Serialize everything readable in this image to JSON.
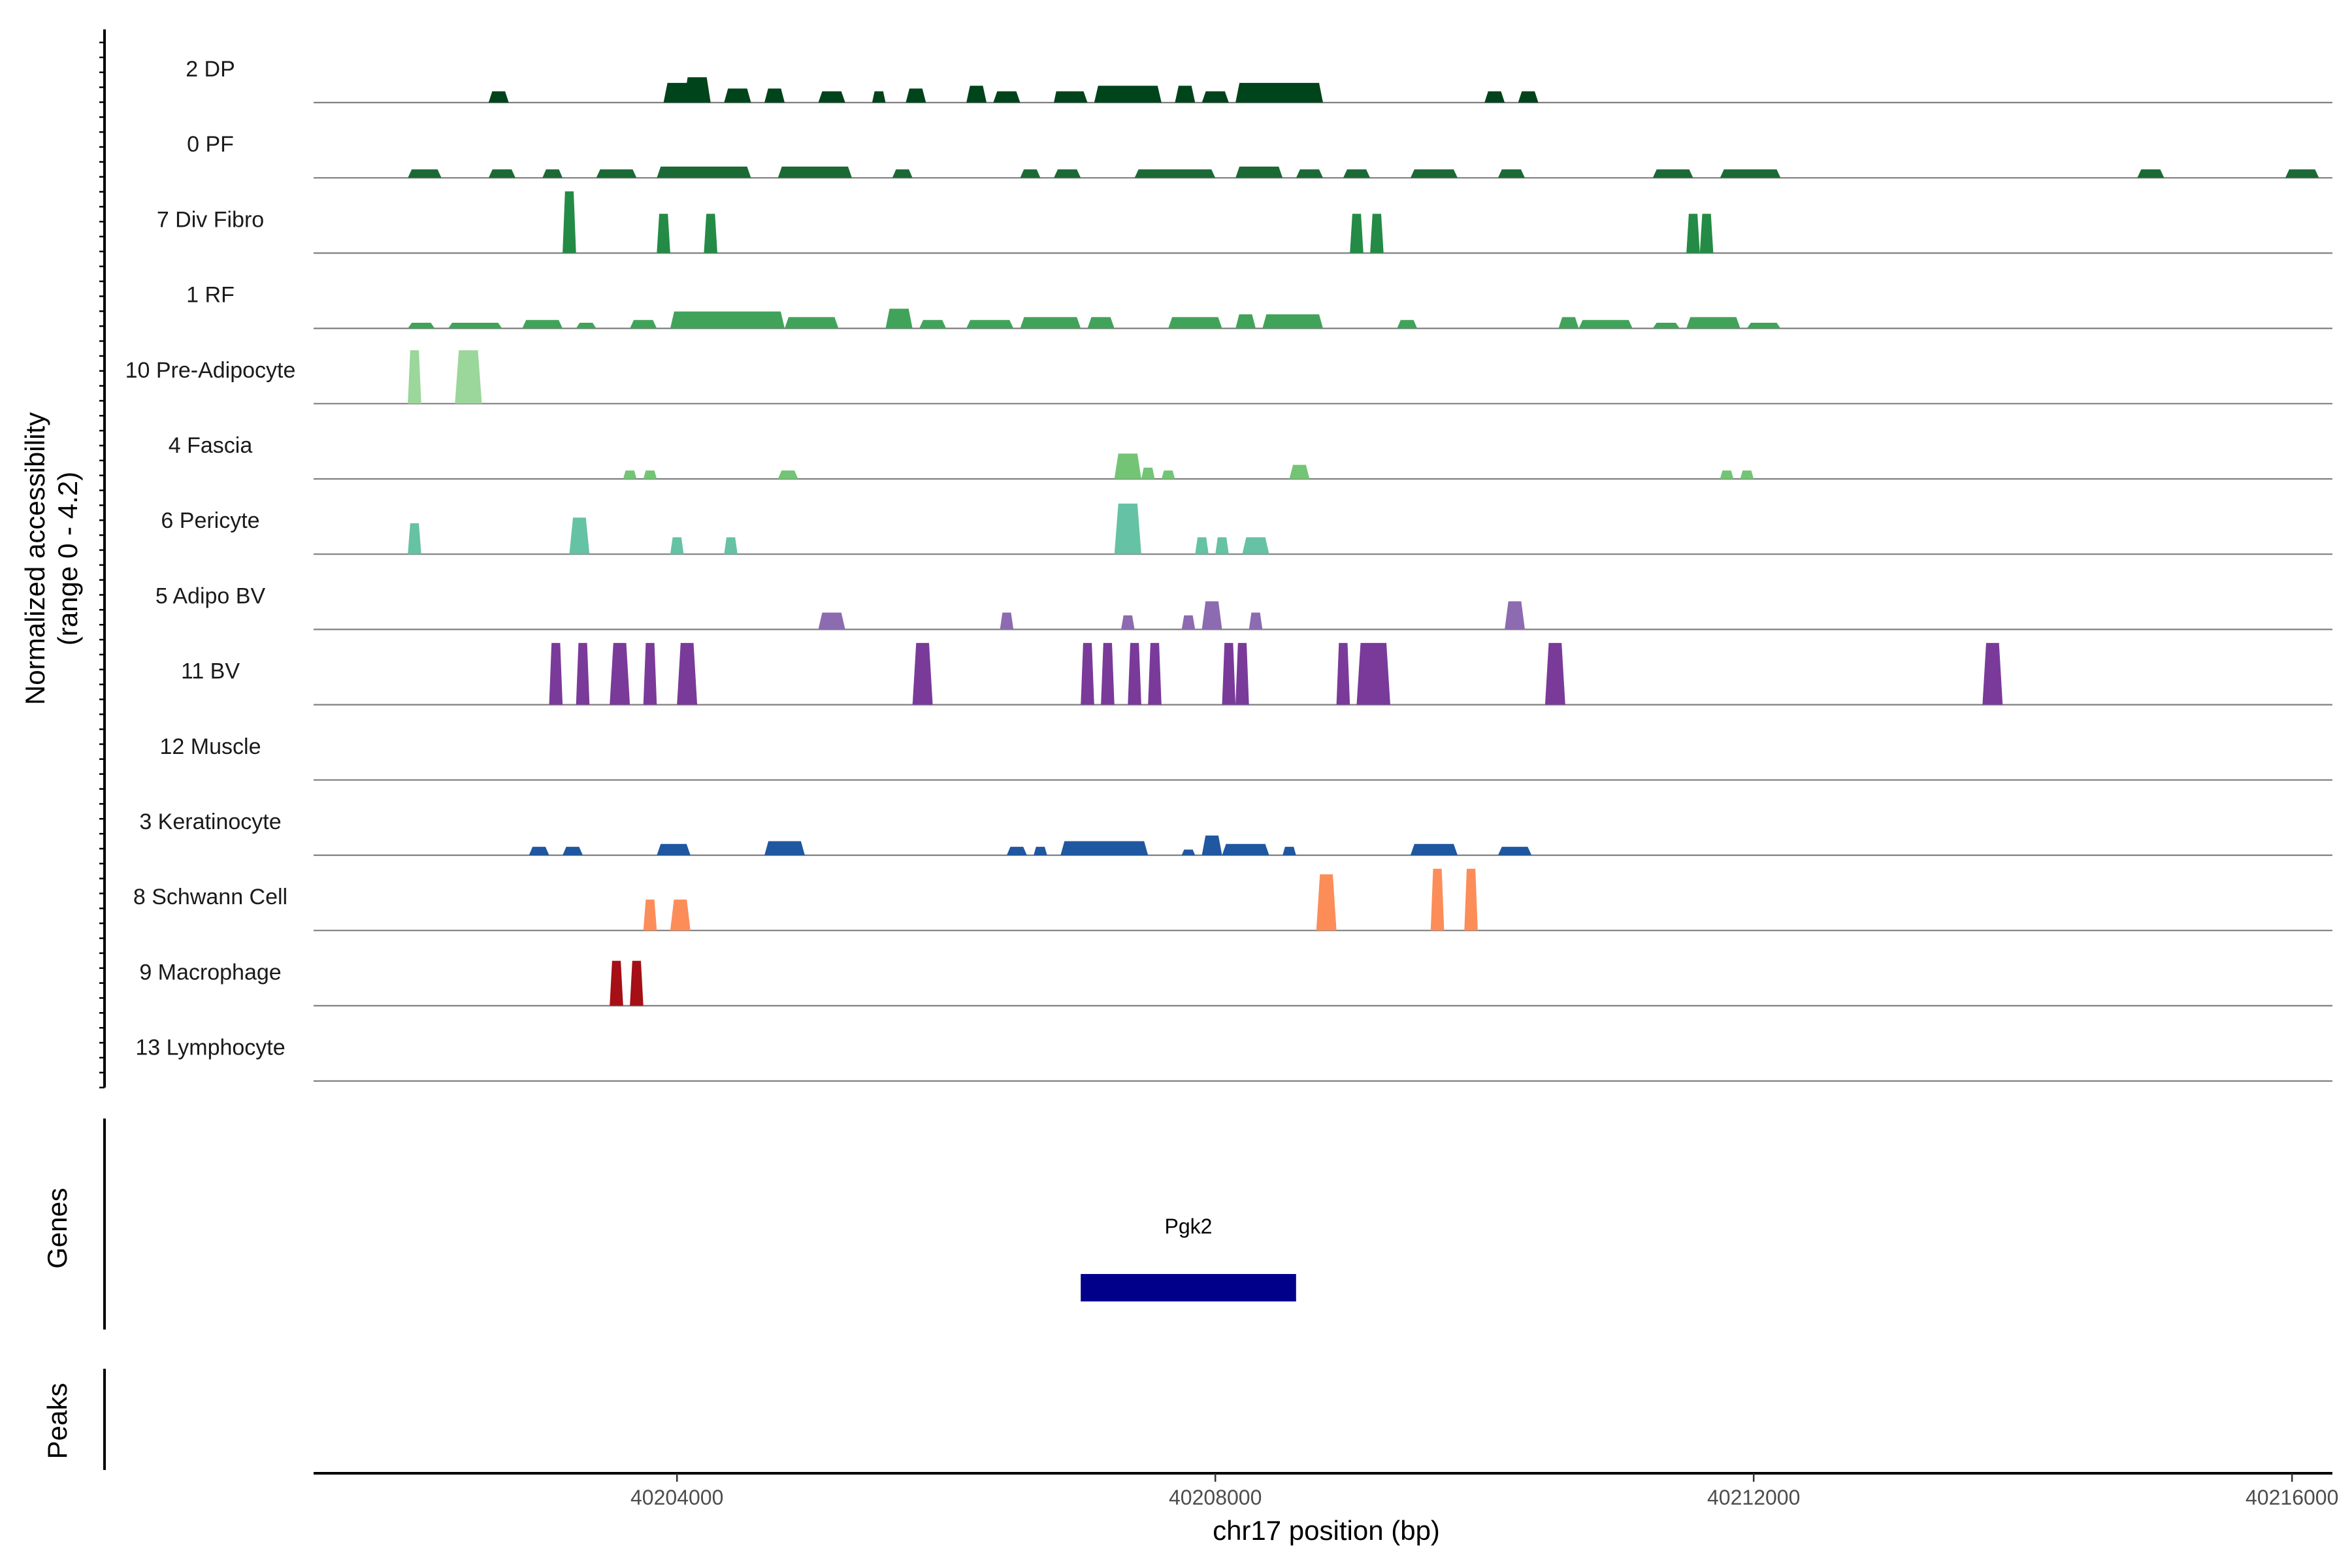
{
  "chart_data": {
    "type": "coverage",
    "title": "",
    "ylabel_line1": "Normalized accessibility",
    "ylabel_line2": "(range 0 - 4.2)",
    "yrange": [
      0,
      4.2
    ],
    "genes_label": "Genes",
    "peaks_label": "Peaks",
    "xlabel": "chr17 position (bp)",
    "xlim": [
      40201300,
      40216300
    ],
    "xticks": [
      40204000,
      40208000,
      40212000,
      40216000
    ],
    "xtick_labels": [
      "40204000",
      "40208000",
      "40212000",
      "40216000"
    ],
    "tracks": [
      {
        "name": "2 DP",
        "color": "#00441b",
        "peaks": [
          [
            40202600,
            40202750,
            0.4
          ],
          [
            40203900,
            40204250,
            0.7
          ],
          [
            40204050,
            40204250,
            0.9
          ],
          [
            40204350,
            40204550,
            0.5
          ],
          [
            40204650,
            40204800,
            0.5
          ],
          [
            40205050,
            40205250,
            0.4
          ],
          [
            40205450,
            40205550,
            0.4
          ],
          [
            40205700,
            40205850,
            0.5
          ],
          [
            40206150,
            40206300,
            0.6
          ],
          [
            40206350,
            40206550,
            0.4
          ],
          [
            40206800,
            40206900,
            0.4
          ],
          [
            40206850,
            40207050,
            0.4
          ],
          [
            40207100,
            40207600,
            0.6
          ],
          [
            40207700,
            40207850,
            0.6
          ],
          [
            40207900,
            40208100,
            0.4
          ],
          [
            40208150,
            40208800,
            0.7
          ],
          [
            40210000,
            40210150,
            0.4
          ],
          [
            40210250,
            40210400,
            0.4
          ]
        ]
      },
      {
        "name": "0 PF",
        "color": "#1b6a35",
        "peaks": [
          [
            40202000,
            40202250,
            0.3
          ],
          [
            40202600,
            40202800,
            0.3
          ],
          [
            40203000,
            40203150,
            0.3
          ],
          [
            40203400,
            40203700,
            0.3
          ],
          [
            40203850,
            40204550,
            0.4
          ],
          [
            40204750,
            40205300,
            0.4
          ],
          [
            40205600,
            40205750,
            0.3
          ],
          [
            40206550,
            40206700,
            0.3
          ],
          [
            40206800,
            40207000,
            0.3
          ],
          [
            40207400,
            40208000,
            0.3
          ],
          [
            40208150,
            40208500,
            0.4
          ],
          [
            40208600,
            40208800,
            0.3
          ],
          [
            40208950,
            40209150,
            0.3
          ],
          [
            40209450,
            40209800,
            0.3
          ],
          [
            40210100,
            40210300,
            0.3
          ],
          [
            40211250,
            40211550,
            0.3
          ],
          [
            40211750,
            40212200,
            0.3
          ],
          [
            40214850,
            40215050,
            0.3
          ],
          [
            40215950,
            40216200,
            0.3
          ]
        ]
      },
      {
        "name": "7 Div Fibro",
        "color": "#238b45",
        "peaks": [
          [
            40203150,
            40203250,
            2.2
          ],
          [
            40203850,
            40203950,
            1.4
          ],
          [
            40204200,
            40204300,
            1.4
          ],
          [
            40209000,
            40209100,
            1.4
          ],
          [
            40209150,
            40209250,
            1.4
          ],
          [
            40211500,
            40211600,
            1.4
          ],
          [
            40211600,
            40211700,
            1.4
          ]
        ]
      },
      {
        "name": "1 RF",
        "color": "#41a35a",
        "peaks": [
          [
            40202000,
            40202200,
            0.2
          ],
          [
            40202300,
            40202700,
            0.2
          ],
          [
            40202850,
            40203150,
            0.3
          ],
          [
            40203250,
            40203400,
            0.2
          ],
          [
            40203650,
            40203850,
            0.3
          ],
          [
            40203950,
            40204800,
            0.6
          ],
          [
            40204800,
            40205200,
            0.4
          ],
          [
            40205550,
            40205750,
            0.7
          ],
          [
            40205800,
            40206000,
            0.3
          ],
          [
            40206150,
            40206500,
            0.3
          ],
          [
            40206550,
            40207000,
            0.4
          ],
          [
            40207050,
            40207250,
            0.4
          ],
          [
            40207650,
            40208050,
            0.4
          ],
          [
            40208150,
            40208300,
            0.5
          ],
          [
            40208350,
            40208800,
            0.5
          ],
          [
            40209350,
            40209500,
            0.3
          ],
          [
            40210550,
            40210700,
            0.4
          ],
          [
            40210700,
            40211100,
            0.3
          ],
          [
            40211250,
            40211450,
            0.2
          ],
          [
            40211500,
            40211900,
            0.4
          ],
          [
            40211950,
            40212200,
            0.2
          ]
        ]
      },
      {
        "name": "10 Pre-Adipocyte",
        "color": "#9bd69a",
        "peaks": [
          [
            40202000,
            40202100,
            1.9
          ],
          [
            40202350,
            40202550,
            1.9
          ]
        ]
      },
      {
        "name": "4 Fascia",
        "color": "#74c476",
        "peaks": [
          [
            40203600,
            40203700,
            0.3
          ],
          [
            40203750,
            40203850,
            0.3
          ],
          [
            40204750,
            40204900,
            0.3
          ],
          [
            40207250,
            40207450,
            0.9
          ],
          [
            40207450,
            40207550,
            0.4
          ],
          [
            40207600,
            40207700,
            0.3
          ],
          [
            40208550,
            40208700,
            0.5
          ],
          [
            40211750,
            40211850,
            0.3
          ],
          [
            40211900,
            40212000,
            0.3
          ]
        ]
      },
      {
        "name": "6 Pericyte",
        "color": "#66c2a4",
        "peaks": [
          [
            40202000,
            40202100,
            1.1
          ],
          [
            40203200,
            40203350,
            1.3
          ],
          [
            40203950,
            40204050,
            0.6
          ],
          [
            40204350,
            40204450,
            0.6
          ],
          [
            40207250,
            40207450,
            1.8
          ],
          [
            40207850,
            40207950,
            0.6
          ],
          [
            40208000,
            40208100,
            0.6
          ],
          [
            40208200,
            40208400,
            0.6
          ]
        ]
      },
      {
        "name": "5 Adipo BV",
        "color": "#8c6bb1",
        "peaks": [
          [
            40205050,
            40205250,
            0.6
          ],
          [
            40206400,
            40206500,
            0.6
          ],
          [
            40207300,
            40207400,
            0.5
          ],
          [
            40207750,
            40207850,
            0.5
          ],
          [
            40207900,
            40208050,
            1.0
          ],
          [
            40208250,
            40208350,
            0.6
          ],
          [
            40210150,
            40210300,
            1.0
          ]
        ]
      },
      {
        "name": "11 BV",
        "color": "#7a3a9a",
        "peaks": [
          [
            40203050,
            40203150,
            2.2
          ],
          [
            40203250,
            40203350,
            2.2
          ],
          [
            40203500,
            40203650,
            2.2
          ],
          [
            40203750,
            40203850,
            2.2
          ],
          [
            40204000,
            40204150,
            2.2
          ],
          [
            40205750,
            40205900,
            2.2
          ],
          [
            40207000,
            40207100,
            2.2
          ],
          [
            40207150,
            40207250,
            2.2
          ],
          [
            40207350,
            40207450,
            2.2
          ],
          [
            40207500,
            40207600,
            2.2
          ],
          [
            40208050,
            40208150,
            2.2
          ],
          [
            40208150,
            40208250,
            2.2
          ],
          [
            40208900,
            40209000,
            2.2
          ],
          [
            40209050,
            40209300,
            2.2
          ],
          [
            40210450,
            40210600,
            2.2
          ],
          [
            40213700,
            40213850,
            2.2
          ]
        ]
      },
      {
        "name": "12 Muscle",
        "color": "#6a3d9a",
        "peaks": []
      },
      {
        "name": "3 Keratinocyte",
        "color": "#1f57a0",
        "peaks": [
          [
            40202900,
            40203050,
            0.3
          ],
          [
            40203150,
            40203300,
            0.3
          ],
          [
            40203850,
            40204100,
            0.4
          ],
          [
            40204650,
            40204950,
            0.5
          ],
          [
            40206450,
            40206600,
            0.3
          ],
          [
            40206650,
            40206750,
            0.3
          ],
          [
            40206850,
            40207500,
            0.5
          ],
          [
            40207750,
            40207850,
            0.2
          ],
          [
            40207900,
            40208050,
            0.7
          ],
          [
            40208050,
            40208400,
            0.4
          ],
          [
            40208500,
            40208600,
            0.3
          ],
          [
            40209450,
            40209800,
            0.4
          ],
          [
            40210100,
            40210350,
            0.3
          ]
        ]
      },
      {
        "name": "8 Schwann Cell",
        "color": "#fc8d59",
        "peaks": [
          [
            40203750,
            40203850,
            1.1
          ],
          [
            40203950,
            40204100,
            1.1
          ],
          [
            40208750,
            40208900,
            2.0
          ],
          [
            40209600,
            40209700,
            2.2
          ],
          [
            40209850,
            40209950,
            2.2
          ]
        ]
      },
      {
        "name": "9 Macrophage",
        "color": "#a50f15",
        "peaks": [
          [
            40203500,
            40203600,
            1.6
          ],
          [
            40203650,
            40203750,
            1.6
          ]
        ]
      },
      {
        "name": "13 Lymphocyte",
        "color": "#4d4d4d",
        "peaks": []
      }
    ],
    "gene_tracks": [
      {
        "name": "Pgk2",
        "start": 40207000,
        "end": 40208600,
        "color": "#00008b"
      }
    ]
  }
}
